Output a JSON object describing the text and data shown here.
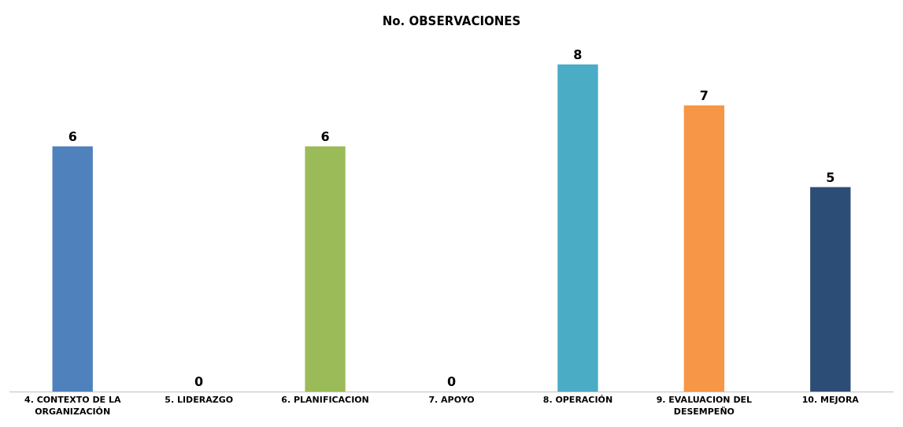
{
  "chart_data": {
    "type": "bar",
    "title": "No. OBSERVACIONES",
    "categories": [
      "4. CONTEXTO DE LA ORGANIZACIÓN",
      "5. LIDERAZGO",
      "6. PLANIFICACION",
      "7. APOYO",
      "8. OPERACIÓN",
      "9. EVALUACION DEL DESEMPEÑO",
      "10. MEJORA"
    ],
    "values": [
      6,
      0,
      6,
      0,
      8,
      7,
      5
    ],
    "colors": [
      "#4f81bd",
      "#c0504d",
      "#9bbb59",
      "#8064a2",
      "#4bacc6",
      "#f79646",
      "#2c4d75"
    ],
    "data_labels": true
  }
}
